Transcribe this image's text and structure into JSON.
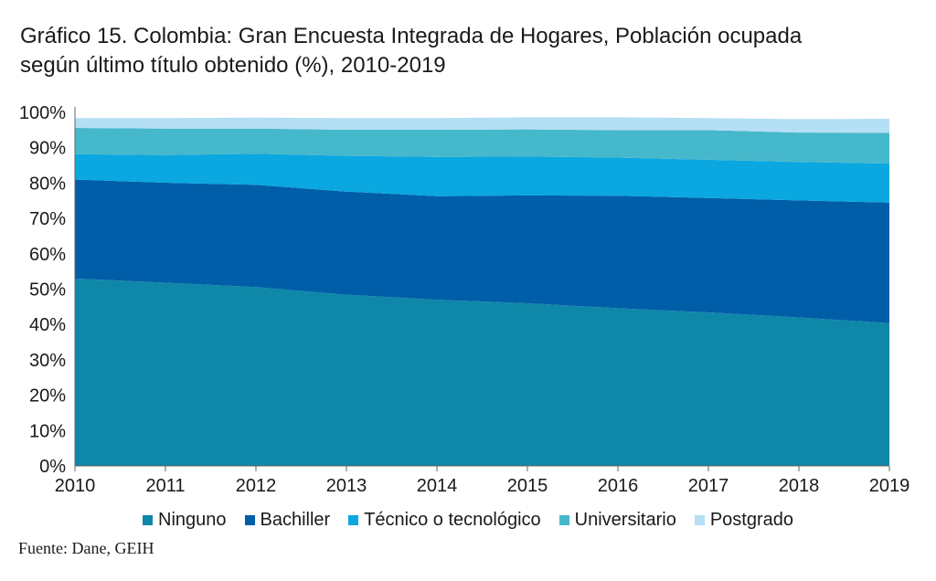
{
  "title_line1": "Gráfico 15. Colombia: Gran Encuesta Integrada de Hogares, Población ocupada",
  "title_line2": "según último título obtenido (%), 2010-2019",
  "source": "Fuente: Dane, GEIH",
  "chart_data": {
    "type": "area",
    "stacked": true,
    "x": [
      "2010",
      "2011",
      "2012",
      "2013",
      "2014",
      "2015",
      "2016",
      "2017",
      "2018",
      "2019"
    ],
    "y_tick_labels": [
      "0%",
      "10%",
      "20%",
      "30%",
      "40%",
      "50%",
      "60%",
      "70%",
      "80%",
      "90%",
      "100%"
    ],
    "ylim": [
      0,
      100
    ],
    "grid": false,
    "legend_position": "bottom",
    "series": [
      {
        "name": "Ninguno",
        "color": "#0f87a8",
        "values": [
          53.0,
          51.8,
          50.6,
          48.4,
          47.0,
          46.0,
          44.6,
          43.4,
          42.0,
          40.4
        ]
      },
      {
        "name": "Bachiller",
        "color": "#005ea8",
        "values": [
          28.0,
          28.3,
          28.9,
          29.2,
          29.3,
          30.5,
          31.8,
          32.4,
          33.1,
          34.1
        ]
      },
      {
        "name": "Técnico o tecnológico",
        "color": "#0aa7e0",
        "values": [
          7.2,
          7.8,
          8.8,
          10.1,
          11.1,
          11.0,
          10.8,
          10.8,
          10.9,
          11.0
        ]
      },
      {
        "name": "Universitario",
        "color": "#46b8cb",
        "values": [
          7.4,
          7.5,
          7.1,
          7.4,
          7.7,
          7.7,
          7.8,
          8.4,
          8.3,
          8.7
        ]
      },
      {
        "name": "Postgrado",
        "color": "#b5dff5",
        "values": [
          2.8,
          3.0,
          3.1,
          3.3,
          3.3,
          3.4,
          3.6,
          3.4,
          3.8,
          4.0
        ]
      }
    ]
  }
}
